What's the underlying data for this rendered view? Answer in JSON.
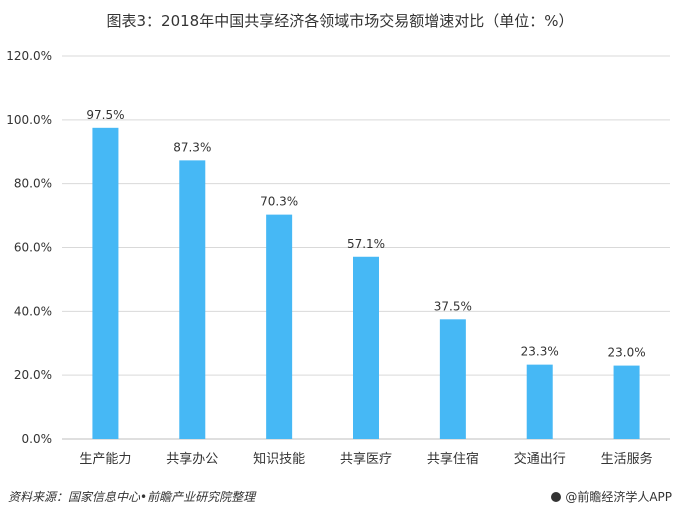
{
  "footer": {
    "source": "资料来源：国家信息中心•前瞻产业研究院整理",
    "brand": "@前瞻经济学人APP"
  },
  "colors": {
    "bar": "#46B8F5",
    "grid": "#D9D9D9",
    "axis": "#BFBFBF",
    "text": "#333333"
  },
  "chart_data": {
    "type": "bar",
    "title": "图表3：2018年中国共享经济各领域市场交易额增速对比（单位：%）",
    "categories": [
      "生产能力",
      "共享办公",
      "知识技能",
      "共享医疗",
      "共享住宿",
      "交通出行",
      "生活服务"
    ],
    "values": [
      97.5,
      87.3,
      70.3,
      57.1,
      37.5,
      23.3,
      23.0
    ],
    "value_labels": [
      "97.5%",
      "87.3%",
      "70.3%",
      "57.1%",
      "37.5%",
      "23.3%",
      "23.0%"
    ],
    "yticks": [
      "0.0%",
      "20.0%",
      "40.0%",
      "60.0%",
      "80.0%",
      "100.0%",
      "120.0%"
    ],
    "ytick_values": [
      0,
      20,
      40,
      60,
      80,
      100,
      120
    ],
    "ylim": [
      0,
      120
    ],
    "grid": true,
    "xlabel": "",
    "ylabel": ""
  }
}
